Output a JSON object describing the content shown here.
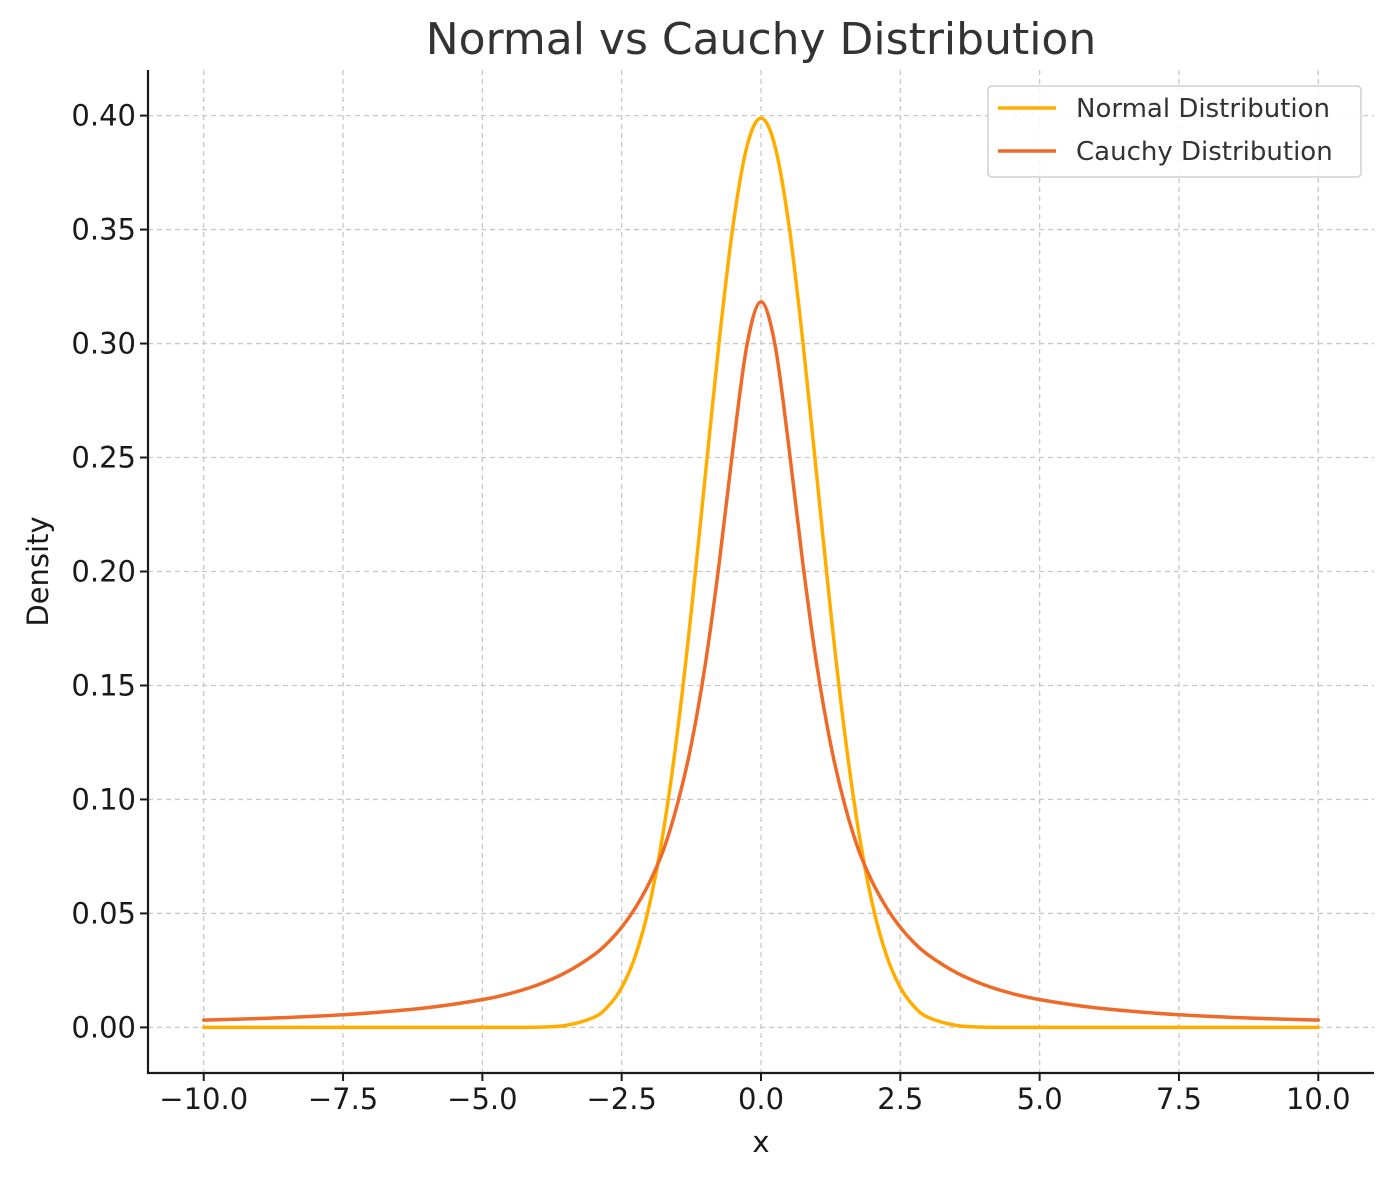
{
  "chart_data": {
    "type": "line",
    "title": "Normal vs Cauchy Distribution",
    "xlabel": "x",
    "ylabel": "Density",
    "xlim": [
      -11,
      11
    ],
    "ylim": [
      -0.02,
      0.42
    ],
    "x_ticks": [
      -10.0,
      -7.5,
      -5.0,
      -2.5,
      0.0,
      2.5,
      5.0,
      7.5,
      10.0
    ],
    "x_tick_labels": [
      "−10.0",
      "−7.5",
      "−5.0",
      "−2.5",
      "0.0",
      "2.5",
      "5.0",
      "7.5",
      "10.0"
    ],
    "y_ticks": [
      0.0,
      0.05,
      0.1,
      0.15,
      0.2,
      0.25,
      0.3,
      0.35,
      0.4
    ],
    "y_tick_labels": [
      "0.00",
      "0.05",
      "0.10",
      "0.15",
      "0.20",
      "0.25",
      "0.30",
      "0.35",
      "0.40"
    ],
    "grid": true,
    "legend_position": "top-right",
    "x": [
      -10,
      -9,
      -8,
      -7,
      -6,
      -5,
      -4.5,
      -4,
      -3.5,
      -3,
      -2.75,
      -2.5,
      -2.25,
      -2,
      -1.75,
      -1.5,
      -1.25,
      -1,
      -0.75,
      -0.5,
      -0.25,
      0,
      0.25,
      0.5,
      0.75,
      1,
      1.25,
      1.5,
      1.75,
      2,
      2.25,
      2.5,
      2.75,
      3,
      3.5,
      4,
      4.5,
      5,
      6,
      7,
      8,
      9,
      10
    ],
    "series": [
      {
        "name": "Normal Distribution",
        "color": "#ffae00",
        "values": [
          0.0,
          0.0,
          0.0,
          0.0,
          0.0,
          0.0,
          0.0,
          0.0001,
          0.0009,
          0.0044,
          0.0091,
          0.0175,
          0.0317,
          0.054,
          0.0863,
          0.1295,
          0.1826,
          0.242,
          0.3011,
          0.3521,
          0.3867,
          0.3989,
          0.3867,
          0.3521,
          0.3011,
          0.242,
          0.1826,
          0.1295,
          0.0863,
          0.054,
          0.0317,
          0.0175,
          0.0091,
          0.0044,
          0.0009,
          0.0001,
          0.0,
          0.0,
          0.0,
          0.0,
          0.0,
          0.0,
          0.0
        ]
      },
      {
        "name": "Cauchy Distribution",
        "color": "#ee6a28",
        "values": [
          0.0032,
          0.0039,
          0.0049,
          0.0064,
          0.0086,
          0.0122,
          0.0149,
          0.0187,
          0.0241,
          0.0318,
          0.0371,
          0.0439,
          0.0526,
          0.0637,
          0.0779,
          0.0979,
          0.1242,
          0.1592,
          0.2037,
          0.2546,
          0.2996,
          0.3183,
          0.2996,
          0.2546,
          0.2037,
          0.1592,
          0.1242,
          0.0979,
          0.0779,
          0.0637,
          0.0526,
          0.0439,
          0.0371,
          0.0318,
          0.0241,
          0.0187,
          0.0149,
          0.0122,
          0.0086,
          0.0064,
          0.0049,
          0.0039,
          0.0032
        ]
      }
    ]
  }
}
